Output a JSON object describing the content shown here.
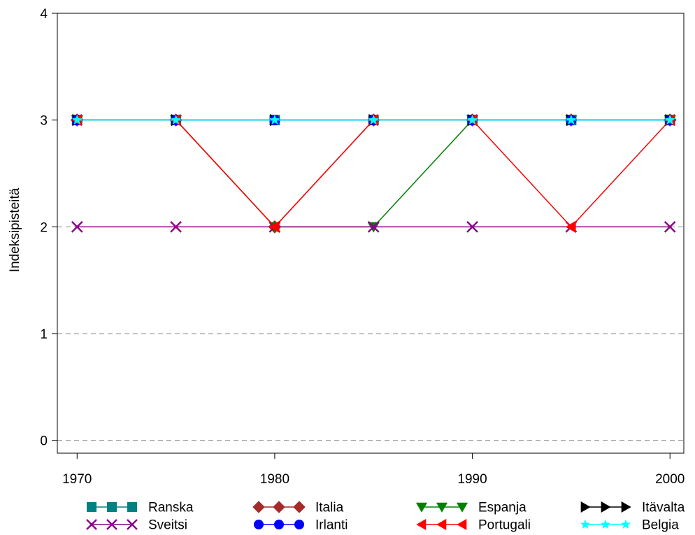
{
  "chart_data": {
    "type": "line",
    "title": "",
    "xlabel": "",
    "ylabel": "Indeksipisteitä",
    "x": [
      1970,
      1975,
      1980,
      1985,
      1990,
      1995,
      2000
    ],
    "xticks": [
      1970,
      1980,
      1990,
      2000
    ],
    "yticks": [
      0,
      1,
      2,
      3,
      4
    ],
    "xlim": [
      1969,
      2000.7
    ],
    "ylim": [
      -0.12,
      4
    ],
    "grid": "dashed horizontal lines at y = 0, 1, 2 (below the series)",
    "legend_position": "bottom",
    "series": [
      {
        "name": "Ranska",
        "color": "#008080",
        "marker": "square",
        "values": [
          3,
          3,
          3,
          3,
          3,
          3,
          3
        ]
      },
      {
        "name": "Italia",
        "color": "#A52A2A",
        "marker": "diamond",
        "values": [
          3,
          3,
          2,
          3,
          3,
          3,
          3
        ]
      },
      {
        "name": "Espanja",
        "color": "#008000",
        "marker": "triangle-down",
        "values": [
          3,
          3,
          2,
          2,
          3,
          3,
          3
        ]
      },
      {
        "name": "Itävalta",
        "color": "#000000",
        "marker": "triangle-right",
        "values": [
          3,
          3,
          3,
          3,
          3,
          3,
          3
        ]
      },
      {
        "name": "Sveitsi",
        "color": "#8B008B",
        "marker": "x",
        "values": [
          2,
          2,
          2,
          2,
          2,
          2,
          2
        ]
      },
      {
        "name": "Irlanti",
        "color": "#0000FF",
        "marker": "circle",
        "values": [
          3,
          3,
          3,
          3,
          3,
          3,
          3
        ]
      },
      {
        "name": "Portugali",
        "color": "#FF0000",
        "marker": "triangle-left",
        "values": [
          3,
          3,
          2,
          3,
          3,
          2,
          3
        ]
      },
      {
        "name": "Belgia",
        "color": "#00FFFF",
        "marker": "star",
        "values": [
          3,
          3,
          3,
          3,
          3,
          3,
          3
        ]
      }
    ]
  }
}
